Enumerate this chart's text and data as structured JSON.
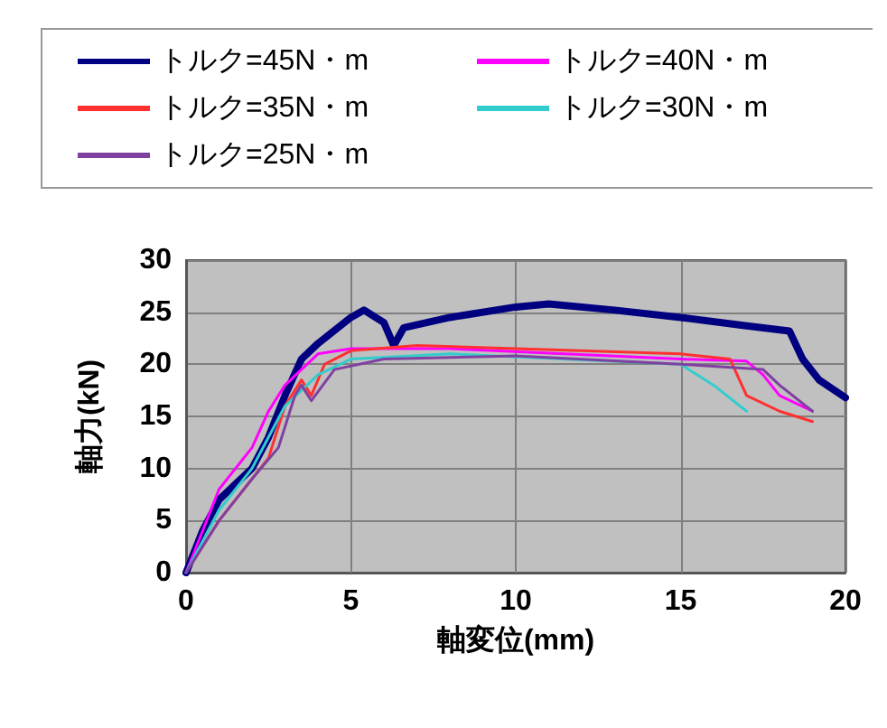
{
  "chart_data": {
    "type": "line",
    "xlabel": "軸変位(mm)",
    "ylabel": "軸力(kN)",
    "xlim": [
      0,
      20
    ],
    "xticks": [
      0,
      5,
      10,
      15,
      20
    ],
    "ylim": [
      0,
      30
    ],
    "yticks": [
      0,
      5,
      10,
      15,
      20,
      25,
      30
    ],
    "grid": true,
    "legend": "top",
    "marker": "none",
    "line_style": "solid",
    "series": [
      {
        "name": "トルク=45N・m",
        "color": "#000080",
        "x": [
          0,
          0.5,
          1,
          2,
          2.5,
          3,
          3.5,
          4,
          5,
          5.4,
          6,
          6.3,
          6.6,
          8,
          10,
          11,
          13,
          15,
          17,
          18.3,
          18.7,
          19.2,
          20
        ],
        "values": [
          0,
          4,
          7,
          10,
          13,
          17,
          20.5,
          22,
          24.5,
          25.2,
          24,
          21.8,
          23.5,
          24.5,
          25.5,
          25.8,
          25.2,
          24.5,
          23.7,
          23.2,
          20.5,
          18.5,
          16.8
        ]
      },
      {
        "name": "トルク=40N・m",
        "color": "#ff00ff",
        "x": [
          0,
          1,
          2,
          2.5,
          3,
          4,
          5,
          8,
          15,
          17,
          17.5,
          18,
          19
        ],
        "values": [
          0,
          8,
          12,
          15.5,
          18,
          21,
          21.5,
          21.5,
          20.5,
          20.3,
          19,
          17,
          15.5
        ]
      },
      {
        "name": "トルク=35N・m",
        "color": "#ff3030",
        "x": [
          0,
          1,
          2,
          2.5,
          3,
          3.5,
          3.8,
          4.2,
          5,
          7,
          15,
          16.5,
          17,
          18,
          19
        ],
        "values": [
          0,
          5,
          9,
          11,
          16,
          18.5,
          17,
          20,
          21.3,
          21.8,
          21,
          20.5,
          17,
          15.5,
          14.5
        ]
      },
      {
        "name": "トルク=30N・m",
        "color": "#33cccc",
        "x": [
          0,
          1,
          2,
          3,
          4,
          5,
          8,
          15,
          16,
          17
        ],
        "values": [
          0,
          6,
          10,
          16,
          19,
          20.5,
          21,
          20,
          18,
          15.5
        ]
      },
      {
        "name": "トルク=25N・m",
        "color": "#8040a0",
        "x": [
          0,
          1,
          2,
          2.8,
          3.3,
          3.5,
          3.8,
          4.5,
          6,
          10,
          15,
          17.5,
          18,
          19
        ],
        "values": [
          0,
          5,
          9,
          12,
          17,
          18,
          16.5,
          19.5,
          20.5,
          20.8,
          20,
          19.5,
          18,
          15.5
        ]
      }
    ]
  }
}
